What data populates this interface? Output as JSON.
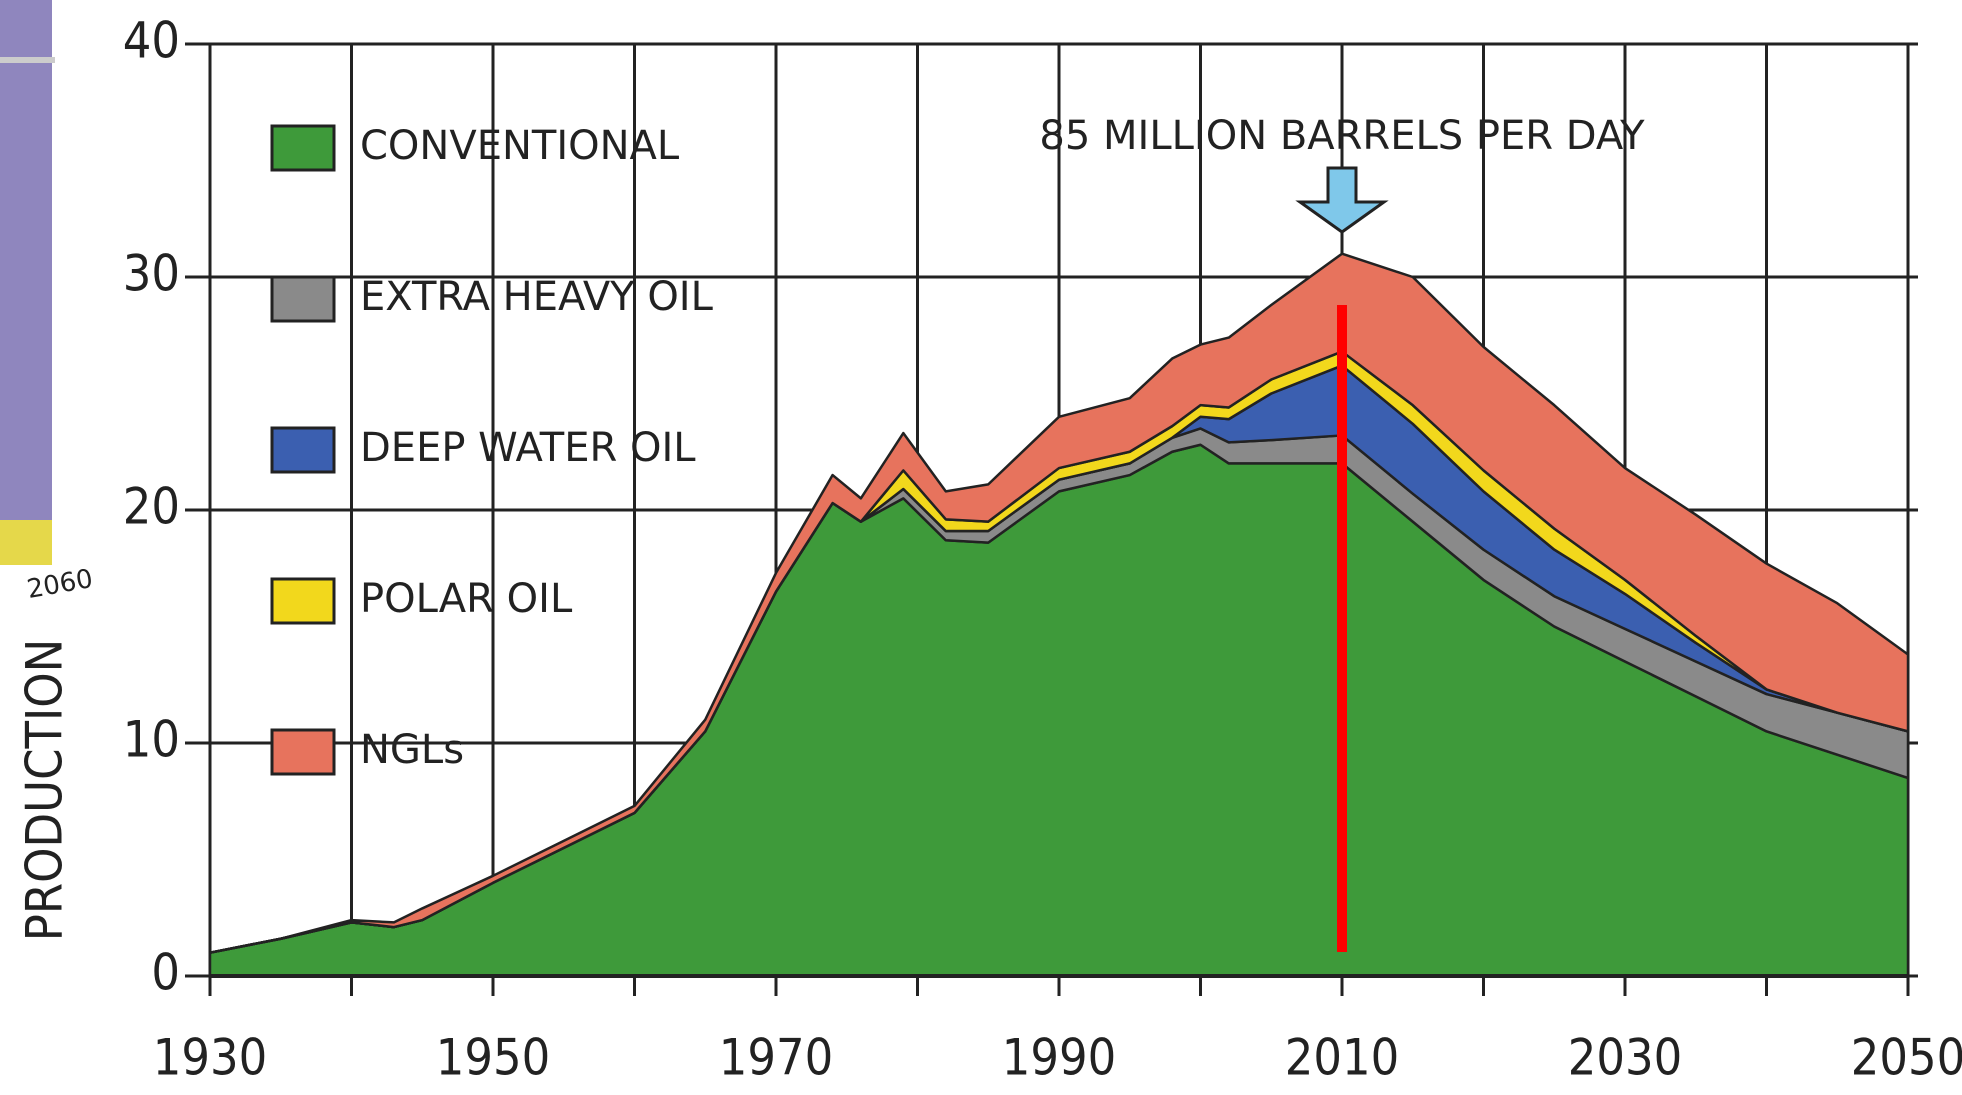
{
  "chart_data": {
    "type": "stacked-area",
    "ylabel": "PRODUCTION",
    "annotation": {
      "text": "85 MILLION BARRELS PER DAY",
      "x": 2010
    },
    "highlight_x": 2010,
    "side_label": "2060",
    "x": [
      1930,
      1935,
      1940,
      1943,
      1945,
      1950,
      1955,
      1960,
      1965,
      1970,
      1974,
      1976,
      1979,
      1982,
      1985,
      1990,
      1995,
      1998,
      2000,
      2002,
      2005,
      2010,
      2015,
      2020,
      2025,
      2030,
      2035,
      2040,
      2045,
      2050
    ],
    "series": [
      {
        "name": "CONVENTIONAL",
        "color": "#3e9a3a",
        "values": [
          1,
          1.6,
          2.3,
          2.1,
          2.4,
          4,
          5.5,
          7,
          10.5,
          16.5,
          20.3,
          19.5,
          20.5,
          18.7,
          18.6,
          20.8,
          21.5,
          22.5,
          22.8,
          22,
          22,
          22,
          19.5,
          17,
          15,
          13.5,
          12,
          10.5,
          9.5,
          8.5
        ]
      },
      {
        "name": "EXTRA HEAVY OIL",
        "color": "#8a8a8a",
        "values": [
          0,
          0,
          0,
          0,
          0,
          0,
          0,
          0,
          0,
          0,
          0,
          0,
          0.4,
          0.4,
          0.5,
          0.5,
          0.5,
          0.6,
          0.7,
          0.9,
          1.0,
          1.2,
          1.2,
          1.3,
          1.3,
          1.4,
          1.5,
          1.6,
          1.8,
          2.0
        ]
      },
      {
        "name": "DEEP WATER OIL",
        "color": "#3b5fb0",
        "values": [
          0,
          0,
          0,
          0,
          0,
          0,
          0,
          0,
          0,
          0,
          0,
          0,
          0,
          0,
          0,
          0,
          0,
          0,
          0.5,
          1,
          2,
          3,
          3,
          2.5,
          2,
          1.5,
          0.8,
          0.2,
          0,
          0
        ]
      },
      {
        "name": "POLAR OIL",
        "color": "#f2d81c",
        "values": [
          0,
          0,
          0,
          0,
          0,
          0,
          0,
          0,
          0,
          0,
          0,
          0,
          0.8,
          0.5,
          0.4,
          0.5,
          0.5,
          0.5,
          0.5,
          0.5,
          0.6,
          0.6,
          0.8,
          0.9,
          0.9,
          0.6,
          0.3,
          0,
          0,
          0
        ]
      },
      {
        "name": "NGLs",
        "color": "#e7735d",
        "values": [
          0,
          0,
          0.1,
          0.2,
          0.5,
          0.3,
          0.3,
          0.3,
          0.5,
          0.8,
          1.2,
          1.0,
          1.6,
          1.2,
          1.6,
          2.2,
          2.3,
          2.9,
          2.6,
          3.0,
          3.2,
          4.2,
          5.5,
          5.3,
          5.3,
          4.8,
          5.2,
          5.4,
          4.7,
          3.3
        ]
      }
    ],
    "xlim": [
      1930,
      2050
    ],
    "xticks": [
      1930,
      1950,
      1970,
      1990,
      2010,
      2030,
      2050
    ],
    "xminorticks": [
      1940,
      1960,
      1980,
      2000,
      2020,
      2040
    ],
    "ylim": [
      0,
      40
    ],
    "yticks": [
      0,
      10,
      20,
      30,
      40
    ],
    "grid": true,
    "legend": "upper left"
  }
}
